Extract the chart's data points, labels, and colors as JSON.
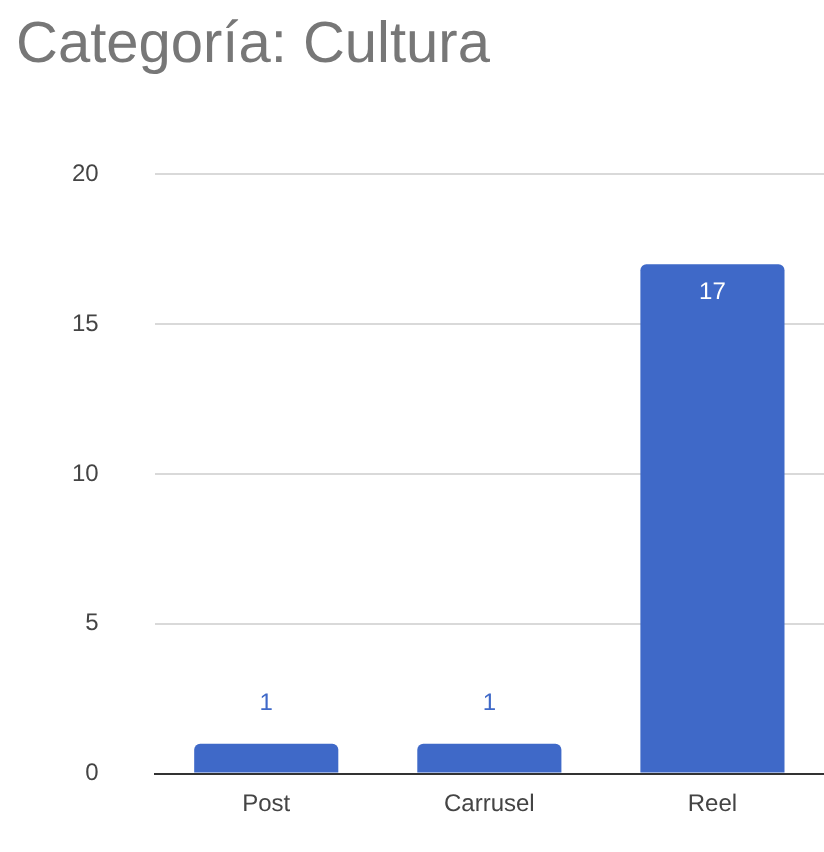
{
  "chart_data": {
    "type": "bar",
    "title": "Categoría: Cultura",
    "categories": [
      "Post",
      "Carrusel",
      "Reel"
    ],
    "values": [
      1,
      1,
      17
    ],
    "color": "#3f69c8",
    "ylim": [
      0,
      20
    ],
    "yticks": [
      0,
      5,
      10,
      15,
      20
    ],
    "grid": "y",
    "data_labels": true
  }
}
